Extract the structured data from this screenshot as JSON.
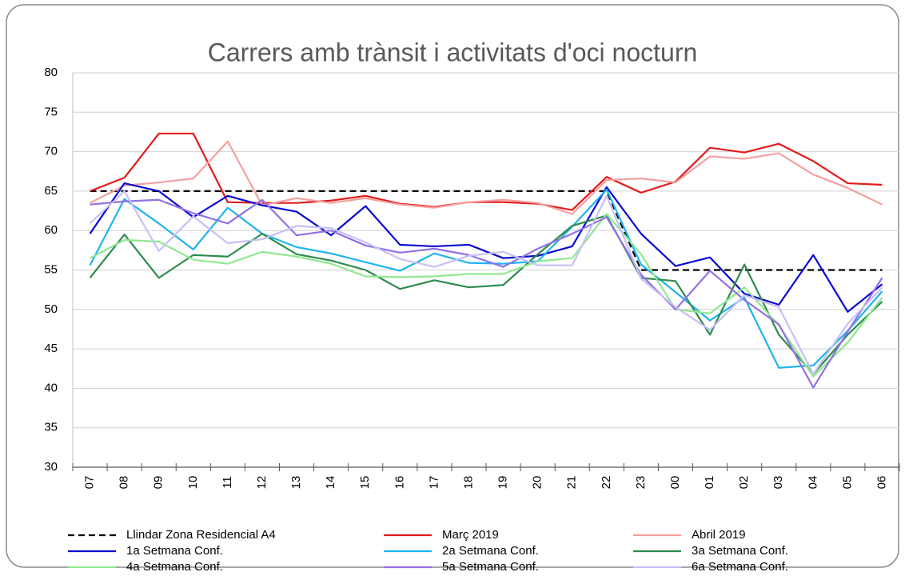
{
  "chart_data": {
    "type": "line",
    "title": "Carrers amb trànsit i activitats d'oci nocturn",
    "categories": [
      "07",
      "08",
      "09",
      "10",
      "11",
      "12",
      "13",
      "14",
      "15",
      "16",
      "17",
      "18",
      "19",
      "20",
      "21",
      "22",
      "23",
      "00",
      "01",
      "02",
      "03",
      "04",
      "05",
      "06"
    ],
    "ylim": [
      30,
      80
    ],
    "yticks": [
      30,
      35,
      40,
      45,
      50,
      55,
      60,
      65,
      70,
      75,
      80
    ],
    "grid": true,
    "legend": "bottom",
    "series": [
      {
        "name": "Llindar Zona Residencial A4",
        "color": "#000000",
        "dashed": true,
        "values": [
          65,
          65,
          65,
          65,
          65,
          65,
          65,
          65,
          65,
          65,
          65,
          65,
          65,
          65,
          65,
          65,
          55,
          55,
          55,
          55,
          55,
          55,
          55,
          55
        ]
      },
      {
        "name": "Març 2019",
        "color": "#e41a1c",
        "values": [
          65,
          66.7,
          72.3,
          72.3,
          63.6,
          63.5,
          63.5,
          63.8,
          64.4,
          63.4,
          63.0,
          63.6,
          63.6,
          63.4,
          62.6,
          66.8,
          64.8,
          66.2,
          70.5,
          69.9,
          71.0,
          68.8,
          66.0,
          65.8
        ]
      },
      {
        "name": "Abril 2019",
        "color": "#f4a0a0",
        "values": [
          63.5,
          65.7,
          66.1,
          66.6,
          71.3,
          63.2,
          64.1,
          63.5,
          64.1,
          63.3,
          62.9,
          63.6,
          63.9,
          63.5,
          62.1,
          66.4,
          66.6,
          66.1,
          69.4,
          69.1,
          69.8,
          67.1,
          65.4,
          63.3
        ]
      },
      {
        "name": "1a Setmana Conf.",
        "color": "#0a0ad2",
        "values": [
          59.6,
          66.0,
          65.0,
          61.7,
          64.4,
          63.2,
          62.4,
          59.4,
          63.1,
          58.2,
          58.0,
          58.2,
          56.5,
          56.8,
          58.0,
          65.5,
          59.6,
          55.5,
          56.6,
          52.0,
          50.6,
          56.9,
          49.7,
          53.2
        ]
      },
      {
        "name": "2a Setmana Conf.",
        "color": "#1eb4f0",
        "values": [
          55.6,
          64.0,
          60.9,
          57.6,
          62.9,
          59.6,
          57.9,
          57.1,
          56.0,
          54.9,
          57.1,
          55.9,
          55.8,
          56.1,
          60.5,
          65.2,
          55.7,
          52.2,
          48.6,
          51.5,
          42.6,
          42.9,
          47.3,
          52.3
        ]
      },
      {
        "name": "3a Setmana Conf.",
        "color": "#2e8b4e",
        "values": [
          54.0,
          59.5,
          54.0,
          56.9,
          56.7,
          59.6,
          57.0,
          56.2,
          55.0,
          52.6,
          53.7,
          52.8,
          53.1,
          57.0,
          60.6,
          61.9,
          54.0,
          53.6,
          46.8,
          55.7,
          46.8,
          41.8,
          46.8,
          51.0
        ]
      },
      {
        "name": "4a Setmana Conf.",
        "color": "#90e890",
        "values": [
          56.5,
          58.8,
          58.6,
          56.3,
          55.8,
          57.3,
          56.7,
          55.8,
          54.2,
          54.1,
          54.2,
          54.5,
          54.5,
          56.1,
          56.5,
          62.1,
          57.0,
          50.0,
          49.5,
          52.8,
          48.0,
          41.5,
          45.8,
          51.5
        ]
      },
      {
        "name": "5a Setmana Conf.",
        "color": "#9370e6",
        "values": [
          63.3,
          63.7,
          63.9,
          62.2,
          60.9,
          63.9,
          59.4,
          60.0,
          58.1,
          57.2,
          57.7,
          56.9,
          55.4,
          57.7,
          59.6,
          61.7,
          54.4,
          50.0,
          54.9,
          51.2,
          48.1,
          40.1,
          47.2,
          54.0
        ]
      },
      {
        "name": "6a Setmana Conf.",
        "color": "#c8c0f4",
        "values": [
          60.9,
          65.0,
          57.4,
          61.8,
          58.4,
          58.9,
          60.6,
          60.3,
          58.5,
          56.4,
          55.4,
          56.8,
          57.3,
          55.6,
          55.6,
          64.4,
          53.9,
          50.3,
          47.4,
          51.8,
          50.3,
          41.8,
          48.2,
          52.8
        ]
      }
    ]
  }
}
